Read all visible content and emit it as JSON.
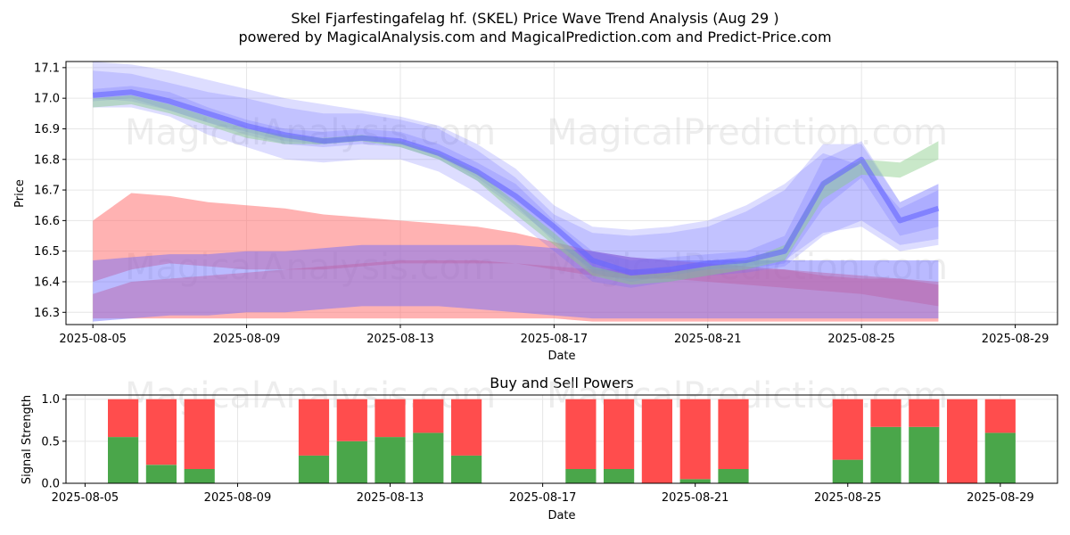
{
  "header": {
    "title": "Skel Fjarfestingafelag hf. (SKEL) Price Wave Trend Analysis (Aug 29 )",
    "subtitle": "powered by MagicalAnalysis.com and MagicalPrediction.com and Predict-Price.com"
  },
  "watermarks": {
    "left": "MagicalAnalysis.com",
    "right": "MagicalPrediction.com"
  },
  "colors": {
    "blue_band": "#6666ff",
    "green_band": "#88cc88",
    "red_band": "#ff6666",
    "buy_bar": "#4aa64a",
    "sell_bar": "#ff4d4d"
  },
  "chart_data": [
    {
      "type": "area",
      "title": "",
      "xlabel": "Date",
      "ylabel": "Price",
      "ylim": [
        16.26,
        17.12
      ],
      "xlim_days": [
        -0.7,
        25.1
      ],
      "x_origin": "2025-08-05",
      "yticks": [
        16.3,
        16.4,
        16.5,
        16.6,
        16.7,
        16.8,
        16.9,
        17.0,
        17.1
      ],
      "ytick_labels": [
        "16.3",
        "16.4",
        "16.5",
        "16.6",
        "16.7",
        "16.8",
        "16.9",
        "17.0",
        "17.1"
      ],
      "xtick_days": [
        0,
        4,
        8,
        12,
        16,
        20,
        24
      ],
      "xtick_labels": [
        "2025-08-05",
        "2025-08-09",
        "2025-08-13",
        "2025-08-17",
        "2025-08-21",
        "2025-08-25",
        "2025-08-29"
      ],
      "grid": true,
      "days": [
        0,
        1,
        2,
        3,
        4,
        5,
        6,
        7,
        8,
        9,
        10,
        11,
        12,
        13,
        14,
        15,
        16,
        17,
        18,
        19,
        20,
        21,
        22,
        23,
        24
      ],
      "price_center": [
        17.01,
        17.02,
        16.99,
        16.95,
        16.91,
        16.88,
        16.86,
        16.87,
        16.86,
        16.82,
        16.76,
        16.68,
        16.58,
        16.47,
        16.43,
        16.44,
        16.46,
        16.47,
        16.5,
        16.72,
        16.8,
        16.6,
        16.64,
        null,
        null
      ],
      "blue_bands": [
        {
          "name": "wave-1",
          "upper": [
            17.03,
            17.04,
            17.02,
            16.97,
            16.93,
            16.9,
            16.89,
            16.9,
            16.89,
            16.85,
            16.79,
            16.72,
            16.6,
            16.5,
            16.47,
            16.48,
            16.49,
            16.5,
            16.55,
            16.8,
            16.86,
            16.66,
            16.72,
            null,
            null
          ],
          "lower": [
            16.99,
            17.0,
            16.96,
            16.92,
            16.88,
            16.85,
            16.84,
            16.85,
            16.84,
            16.8,
            16.73,
            16.64,
            16.54,
            16.43,
            16.4,
            16.42,
            16.44,
            16.44,
            16.46,
            16.64,
            16.74,
            16.55,
            16.58,
            null,
            null
          ]
        },
        {
          "name": "wave-2",
          "upper": [
            17.09,
            17.08,
            17.05,
            17.02,
            17.0,
            16.97,
            16.95,
            16.95,
            16.93,
            16.9,
            16.83,
            16.74,
            16.62,
            16.56,
            16.55,
            16.56,
            16.58,
            16.63,
            16.7,
            16.85,
            16.85,
            16.66,
            16.72,
            null,
            null
          ],
          "lower": [
            16.97,
            16.97,
            16.94,
            16.88,
            16.84,
            16.8,
            16.79,
            16.8,
            16.8,
            16.76,
            16.69,
            16.6,
            16.5,
            16.4,
            16.38,
            16.4,
            16.42,
            16.43,
            16.45,
            16.55,
            16.6,
            16.52,
            16.54,
            null,
            null
          ]
        },
        {
          "name": "wave-3",
          "upper": [
            17.12,
            17.11,
            17.09,
            17.06,
            17.03,
            17.0,
            16.98,
            16.96,
            16.94,
            16.91,
            16.85,
            16.77,
            16.65,
            16.58,
            16.57,
            16.58,
            16.6,
            16.65,
            16.72,
            16.82,
            16.78,
            16.64,
            16.7,
            null,
            null
          ],
          "lower": [
            17.0,
            16.99,
            16.96,
            16.92,
            16.89,
            16.86,
            16.85,
            16.86,
            16.85,
            16.81,
            16.74,
            16.65,
            16.53,
            16.44,
            16.42,
            16.43,
            16.44,
            16.45,
            16.47,
            16.56,
            16.58,
            16.5,
            16.52,
            null,
            null
          ]
        }
      ],
      "green_band": {
        "upper": [
          17.0,
          17.01,
          16.98,
          16.94,
          16.9,
          16.88,
          16.87,
          16.88,
          16.86,
          16.82,
          16.76,
          16.66,
          16.56,
          16.45,
          16.42,
          16.43,
          16.45,
          16.47,
          16.52,
          16.73,
          16.8,
          16.79,
          16.86,
          null,
          null
        ],
        "lower": [
          16.97,
          16.98,
          16.95,
          16.91,
          16.87,
          16.85,
          16.85,
          16.86,
          16.84,
          16.8,
          16.73,
          16.62,
          16.52,
          16.42,
          16.39,
          16.4,
          16.42,
          16.44,
          16.47,
          16.67,
          16.75,
          16.74,
          16.8,
          null,
          null
        ]
      },
      "red_bands": [
        {
          "name": "red-upper",
          "upper": [
            16.6,
            16.69,
            16.68,
            16.66,
            16.65,
            16.64,
            16.62,
            16.61,
            16.6,
            16.59,
            16.58,
            16.56,
            16.53,
            16.5,
            16.48,
            16.47,
            16.46,
            16.45,
            16.44,
            16.42,
            16.41,
            16.41,
            16.39,
            null,
            null
          ],
          "lower": [
            16.4,
            16.44,
            16.46,
            16.45,
            16.44,
            16.44,
            16.44,
            16.45,
            16.46,
            16.46,
            16.46,
            16.46,
            16.44,
            16.42,
            16.41,
            16.41,
            16.4,
            16.39,
            16.38,
            16.37,
            16.36,
            16.34,
            16.32,
            null,
            null
          ]
        },
        {
          "name": "red-lower",
          "upper": [
            16.36,
            16.4,
            16.41,
            16.42,
            16.43,
            16.44,
            16.45,
            16.46,
            16.47,
            16.47,
            16.47,
            16.46,
            16.45,
            16.44,
            16.44,
            16.44,
            16.44,
            16.44,
            16.44,
            16.43,
            16.42,
            16.41,
            16.4,
            null,
            null
          ],
          "lower": [
            16.28,
            16.28,
            16.28,
            16.28,
            16.28,
            16.28,
            16.28,
            16.28,
            16.28,
            16.28,
            16.28,
            16.28,
            16.28,
            16.27,
            16.27,
            16.27,
            16.27,
            16.27,
            16.27,
            16.27,
            16.27,
            16.27,
            16.27,
            null,
            null
          ]
        }
      ],
      "purple_band": {
        "upper": [
          16.47,
          16.48,
          16.49,
          16.49,
          16.5,
          16.5,
          16.51,
          16.52,
          16.52,
          16.52,
          16.52,
          16.52,
          16.51,
          16.5,
          16.48,
          16.47,
          16.47,
          16.47,
          16.47,
          16.47,
          16.47,
          16.47,
          16.47,
          null,
          null
        ],
        "lower": [
          16.27,
          16.28,
          16.29,
          16.29,
          16.3,
          16.3,
          16.31,
          16.32,
          16.32,
          16.32,
          16.31,
          16.3,
          16.29,
          16.28,
          16.28,
          16.28,
          16.28,
          16.28,
          16.28,
          16.28,
          16.28,
          16.28,
          16.28,
          null,
          null
        ]
      }
    },
    {
      "type": "bar",
      "title": "Buy and Sell Powers",
      "xlabel": "Date",
      "ylabel": "Signal Strength",
      "ylim": [
        0,
        1.05
      ],
      "xlim_days": [
        -0.5,
        25.5
      ],
      "x_origin": "2025-08-05",
      "yticks": [
        0.0,
        0.5,
        1.0
      ],
      "ytick_labels": [
        "0.0",
        "0.5",
        "1.0"
      ],
      "xtick_days": [
        0,
        4,
        8,
        12,
        16,
        20,
        24
      ],
      "xtick_labels": [
        "2025-08-05",
        "2025-08-09",
        "2025-08-13",
        "2025-08-17",
        "2025-08-21",
        "2025-08-25",
        "2025-08-29"
      ],
      "grid": true,
      "bar_days": [
        1,
        2,
        3,
        6,
        7,
        8,
        9,
        10,
        13,
        14,
        15,
        16,
        17,
        20,
        21,
        22,
        23,
        24
      ],
      "series": [
        {
          "name": "Buy",
          "values": [
            0.55,
            0.22,
            0.17,
            0.33,
            0.5,
            0.55,
            0.6,
            0.33,
            0.17,
            0.17,
            0.0,
            0.05,
            0.17,
            0.28,
            0.67,
            0.67,
            0.0,
            0.6
          ]
        },
        {
          "name": "Sell",
          "values": [
            0.45,
            0.78,
            0.83,
            0.67,
            0.5,
            0.45,
            0.4,
            0.67,
            0.83,
            0.83,
            1.0,
            0.95,
            0.83,
            0.72,
            0.33,
            0.33,
            1.0,
            0.4
          ]
        }
      ]
    }
  ]
}
